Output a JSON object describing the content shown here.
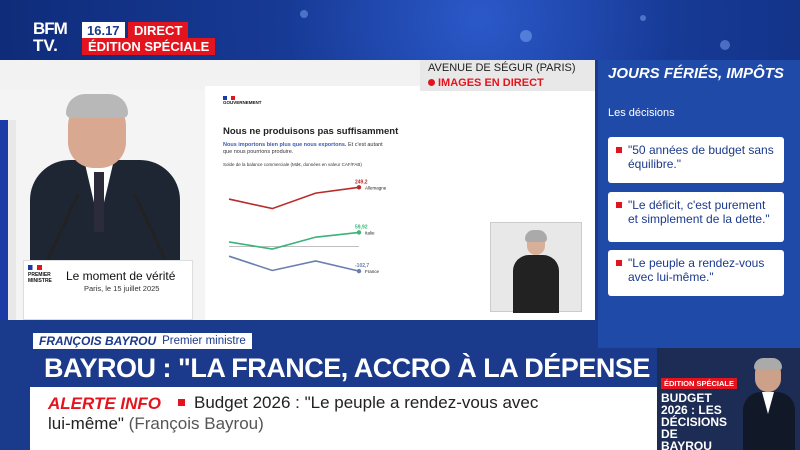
{
  "channel": {
    "logo_line1": "BFM",
    "logo_line2": "TV.",
    "time": "16.17",
    "live_label": "DIRECT",
    "special_label": "ÉDITION SPÉCIALE"
  },
  "location": {
    "title": "AVENUE DE SÉGUR (PARIS)",
    "live": "IMAGES EN DIRECT"
  },
  "lectern": {
    "logo_text": "PREMIER MINISTRE",
    "title": "Le moment de vérité",
    "subtitle": "Paris, le 15 juillet 2025"
  },
  "slide": {
    "logo_text": "GOUVERNEMENT",
    "title": "Nous ne produisons pas suffisamment",
    "subtitle_bold": "Nous importons bien plus que nous exportons.",
    "subtitle_rest": " Et c'est autant que nous pourrions produire.",
    "chart_label": "Solde de la balance commerciale (Md€, données en valeur CAF/FAB)"
  },
  "chart_data": {
    "type": "line",
    "title": "Nous ne produisons pas suffisamment",
    "series": [
      {
        "name": "Allemagne",
        "values": [
          200,
          160,
          225,
          249.2
        ],
        "end_label": "249,2",
        "color": "#b92b2b"
      },
      {
        "name": "Italie",
        "values": [
          20,
          -10,
          40,
          59.92
        ],
        "end_label": "59,92",
        "color": "#3bb37a"
      },
      {
        "name": "France",
        "values": [
          -40,
          -100,
          -60,
          -102.7
        ],
        "end_label": "-102,7",
        "color": "#6a7fb0"
      }
    ]
  },
  "sidebar": {
    "title": "JOURS FÉRIÉS, IMPÔTS",
    "subtitle": "Les décisions",
    "quotes": [
      "\"50 années de budget sans équilibre.\"",
      "\"Le déficit, c'est purement et simplement de la dette.\"",
      "\"Le peuple a rendez-vous avec lui-même.\""
    ]
  },
  "lower_third": {
    "name": "FRANÇOIS BAYROU",
    "role": "Premier ministre",
    "headline": "BAYROU : \"LA FRANCE, ACCRO À LA DÉPENSE PUBLIQUE\""
  },
  "ticker": {
    "label": "ALERTE INFO",
    "text_line1": "Budget 2026 : \"Le peuple a rendez-vous avec",
    "text_line2": "lui-même\"",
    "attribution": "(François Bayrou)"
  },
  "promo": {
    "tag": "ÉDITION SPÉCIALE",
    "title": "BUDGET 2026 : LES DÉCISIONS DE BAYROU"
  },
  "colors": {
    "brand_blue": "#1b3a8c",
    "alert_red": "#e4141f",
    "panel_blue": "#1f4aa8"
  }
}
